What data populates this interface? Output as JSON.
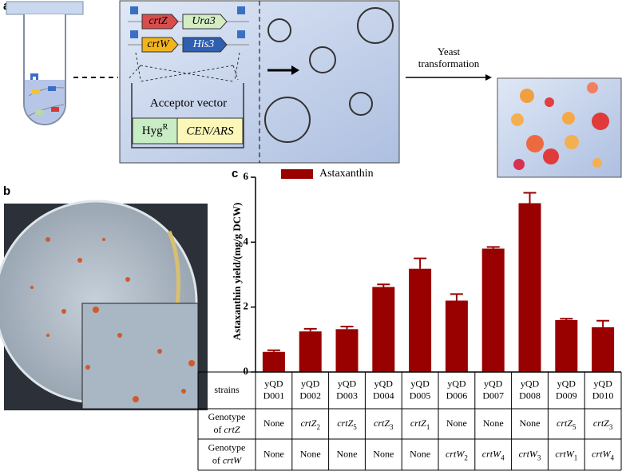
{
  "diagram": {
    "panel_label": "a",
    "genes": [
      "crtZ",
      "Ura3",
      "crtW",
      "His3"
    ],
    "vector_label": "Acceptor vector",
    "marker": {
      "name": "Hyg",
      "sup": "R"
    },
    "origin": "CEN/ARS",
    "step": [
      "Yeast",
      "transformation"
    ]
  },
  "photo": {
    "panel_label": "b"
  },
  "chart_data": {
    "type": "bar",
    "panel_label": "c",
    "ylabel": "Astaxanthin yield/(mg/g DCW)",
    "ylim": [
      0,
      6
    ],
    "yticks": [
      0,
      2,
      4,
      6
    ],
    "legend": "top-left",
    "categories": [
      "yQD\nD001",
      "yQD\nD002",
      "yQD\nD003",
      "yQD\nD004",
      "yQD\nD005",
      "yQD\nD006",
      "yQD\nD007",
      "yQD\nD008",
      "yQD\nD009",
      "yQD\nD010"
    ],
    "series": [
      {
        "name": "Astaxanthin",
        "color": "#990000",
        "values": [
          0.62,
          1.25,
          1.32,
          2.62,
          3.18,
          2.2,
          3.8,
          5.2,
          1.6,
          1.38
        ],
        "errors": [
          0.05,
          0.08,
          0.08,
          0.08,
          0.32,
          0.2,
          0.05,
          0.32,
          0.04,
          0.2
        ]
      }
    ],
    "table": {
      "row_headers": [
        [
          "strains"
        ],
        [
          "Genotype",
          "of",
          "crtZ"
        ],
        [
          "Genotype",
          "of",
          "crtW"
        ]
      ],
      "crtZ": [
        "None",
        {
          "name": "crtZ",
          "sub": "2"
        },
        {
          "name": "crtZ",
          "sub": "5"
        },
        {
          "name": "crtZ",
          "sub": "3"
        },
        {
          "name": "crtZ",
          "sub": "1"
        },
        "None",
        "None",
        "None",
        {
          "name": "crtZ",
          "sub": "5"
        },
        {
          "name": "crtZ",
          "sub": "3"
        }
      ],
      "crtW": [
        "None",
        "None",
        "None",
        "None",
        "None",
        {
          "name": "crtW",
          "sub": "2"
        },
        {
          "name": "crtW",
          "sub": "4"
        },
        {
          "name": "crtW",
          "sub": "3"
        },
        {
          "name": "crtW",
          "sub": "1"
        },
        {
          "name": "crtW",
          "sub": "4"
        }
      ]
    }
  }
}
